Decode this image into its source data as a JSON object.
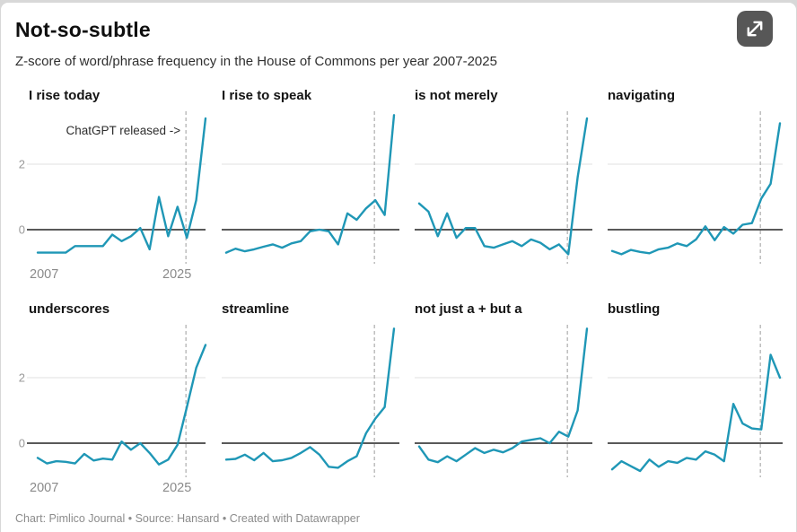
{
  "header": {
    "title": "Not-so-subtle",
    "subtitle": "Z-score of word/phrase frequency in the House of Commons per year 2007-2025"
  },
  "controls": {
    "expand_button_tooltip": "Enlarge chart"
  },
  "footer": {
    "attribution": "Chart: Pimlico Journal • Source: Hansard • Created with Datawrapper"
  },
  "colors": {
    "line": "#1f97b6",
    "zero_line": "#222222",
    "gridline": "#e2e2e2",
    "event_line": "#b3b3b3",
    "tick_label": "#9a9a9a",
    "year_label": "#8a8a8a",
    "annotation": "#2e2e2e",
    "expand_button_bg": "#575757",
    "expand_button_glyph": "#ffffff"
  },
  "chart_data": {
    "type": "line",
    "layout": "small-multiples 4x2",
    "x": [
      2007,
      2008,
      2009,
      2010,
      2011,
      2012,
      2013,
      2014,
      2015,
      2016,
      2017,
      2018,
      2019,
      2020,
      2021,
      2022,
      2023,
      2024,
      2025
    ],
    "x_tick_labels": [
      "2007",
      "2025"
    ],
    "y_ticks": [
      0,
      2
    ],
    "ylim": [
      -1,
      3.75
    ],
    "grid": "y-only",
    "event_line": {
      "x": 2022.9,
      "label": "ChatGPT released ->",
      "label_panel": "I rise today"
    },
    "series": [
      {
        "name": "I rise today",
        "show_axis": true,
        "annotated": true,
        "values": [
          -0.7,
          -0.7,
          -0.7,
          -0.7,
          -0.5,
          -0.5,
          -0.5,
          -0.5,
          -0.15,
          -0.35,
          -0.2,
          0.05,
          -0.6,
          1.0,
          -0.2,
          0.7,
          -0.25,
          0.9,
          3.4
        ]
      },
      {
        "name": "I rise to speak",
        "values": [
          -0.7,
          -0.58,
          -0.66,
          -0.6,
          -0.52,
          -0.45,
          -0.55,
          -0.42,
          -0.35,
          -0.05,
          0.0,
          -0.05,
          -0.45,
          0.5,
          0.3,
          0.65,
          0.9,
          0.45,
          3.5
        ]
      },
      {
        "name": "is not merely",
        "values": [
          0.8,
          0.55,
          -0.2,
          0.5,
          -0.25,
          0.05,
          0.05,
          -0.5,
          -0.55,
          -0.45,
          -0.35,
          -0.5,
          -0.3,
          -0.4,
          -0.6,
          -0.45,
          -0.75,
          1.6,
          3.4
        ]
      },
      {
        "name": "navigating",
        "values": [
          -0.65,
          -0.75,
          -0.62,
          -0.68,
          -0.72,
          -0.6,
          -0.55,
          -0.42,
          -0.5,
          -0.3,
          0.1,
          -0.32,
          0.08,
          -0.12,
          0.15,
          0.2,
          0.95,
          1.4,
          3.25
        ]
      },
      {
        "name": "underscores",
        "show_axis": true,
        "values": [
          -0.45,
          -0.62,
          -0.55,
          -0.57,
          -0.62,
          -0.33,
          -0.53,
          -0.47,
          -0.5,
          0.05,
          -0.2,
          0.0,
          -0.3,
          -0.65,
          -0.5,
          -0.05,
          1.1,
          2.3,
          3.0
        ]
      },
      {
        "name": "streamline",
        "values": [
          -0.5,
          -0.48,
          -0.35,
          -0.52,
          -0.3,
          -0.55,
          -0.52,
          -0.45,
          -0.3,
          -0.12,
          -0.35,
          -0.72,
          -0.75,
          -0.55,
          -0.4,
          0.3,
          0.75,
          1.1,
          3.5
        ]
      },
      {
        "name": "not just a + but a",
        "values": [
          -0.1,
          -0.5,
          -0.58,
          -0.4,
          -0.55,
          -0.35,
          -0.15,
          -0.3,
          -0.2,
          -0.28,
          -0.15,
          0.05,
          0.1,
          0.15,
          0.0,
          0.35,
          0.2,
          1.0,
          3.5
        ]
      },
      {
        "name": "bustling",
        "values": [
          -0.8,
          -0.55,
          -0.7,
          -0.85,
          -0.5,
          -0.72,
          -0.55,
          -0.6,
          -0.45,
          -0.5,
          -0.25,
          -0.35,
          -0.55,
          1.2,
          0.6,
          0.45,
          0.42,
          2.7,
          2.0
        ]
      }
    ]
  }
}
